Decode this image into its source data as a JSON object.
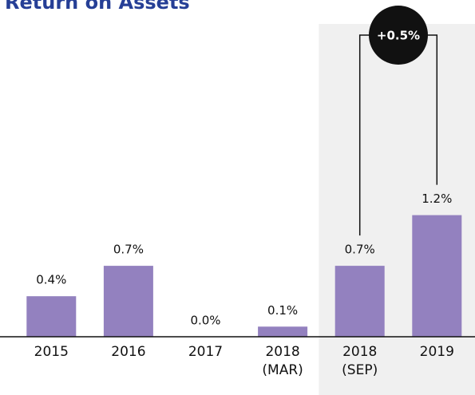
{
  "chart_data": {
    "type": "bar",
    "title": "Return on Assets",
    "categories": [
      "2015",
      "2016",
      "2017",
      "2018 (MAR)",
      "2018 (SEP)",
      "2019"
    ],
    "values": [
      0.4,
      0.7,
      0.0,
      0.1,
      0.7,
      1.2
    ],
    "value_labels": [
      "0.4%",
      "0.7%",
      "0.0%",
      "0.1%",
      "0.7%",
      "1.2%"
    ],
    "color": "#9381bf",
    "title_color": "#263f96",
    "annotation": {
      "label": "+0.5%",
      "from": "2018 (SEP)",
      "to": "2019"
    }
  }
}
